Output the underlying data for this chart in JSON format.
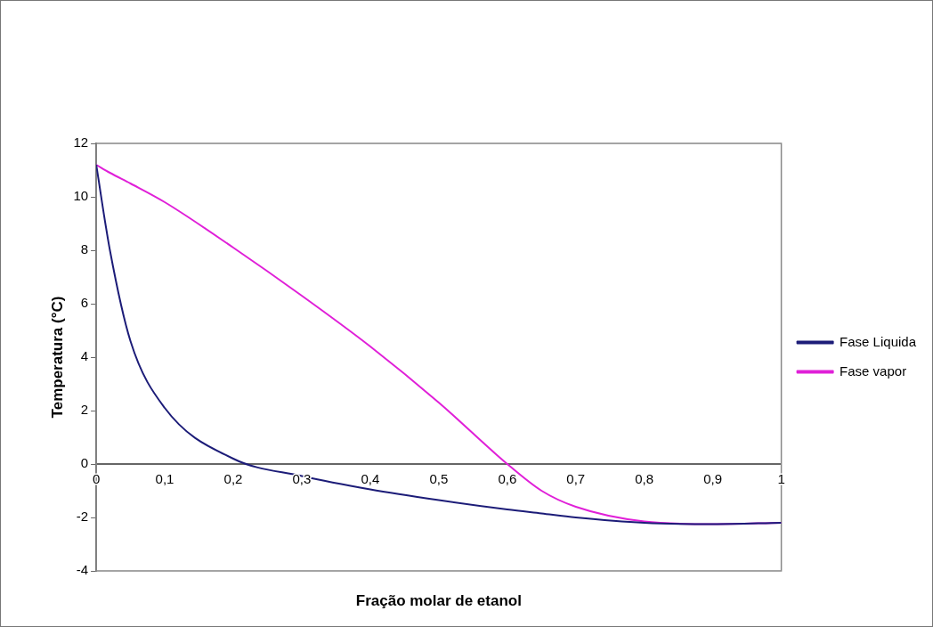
{
  "chart_data": {
    "type": "line",
    "xlabel": "Fração molar de etanol",
    "ylabel": "Temperatura (°C)",
    "xlim": [
      0,
      1
    ],
    "xticks": [
      0,
      {
        "value": 0.1,
        "label": "0,1"
      },
      {
        "value": 0.2,
        "label": "0,2"
      },
      {
        "value": 0.3,
        "label": "0,3"
      },
      {
        "value": 0.4,
        "label": "0,4"
      },
      {
        "value": 0.5,
        "label": "0,5"
      },
      {
        "value": 0.6,
        "label": "0,6"
      },
      {
        "value": 0.7,
        "label": "0,7"
      },
      {
        "value": 0.8,
        "label": "0,8"
      },
      {
        "value": 0.9,
        "label": "0,9"
      },
      1
    ],
    "ylim": [
      -4,
      12
    ],
    "yticks": [
      -4,
      -2,
      0,
      2,
      4,
      6,
      8,
      10,
      12
    ],
    "x": [
      0,
      0.02,
      0.05,
      0.1,
      0.2,
      0.3,
      0.4,
      0.5,
      0.6,
      0.65,
      0.7,
      0.8,
      0.9,
      1
    ],
    "series": [
      {
        "name": "Fase Liquida",
        "color": "#1c1c78",
        "values": [
          11.2,
          8.0,
          4.6,
          2.1,
          0.2,
          -0.45,
          -0.95,
          -1.35,
          -1.7,
          -1.85,
          -2.0,
          -2.2,
          -2.25,
          -2.2
        ]
      },
      {
        "name": "Fase vapor",
        "color": "#e020d8",
        "values": [
          11.2,
          10.9,
          10.5,
          9.8,
          8.1,
          6.3,
          4.4,
          2.3,
          0,
          -1.0,
          -1.6,
          -2.15,
          -2.25,
          -2.2
        ]
      }
    ],
    "legend": "right",
    "grid": false,
    "marker": "none",
    "line_style": "solid"
  }
}
